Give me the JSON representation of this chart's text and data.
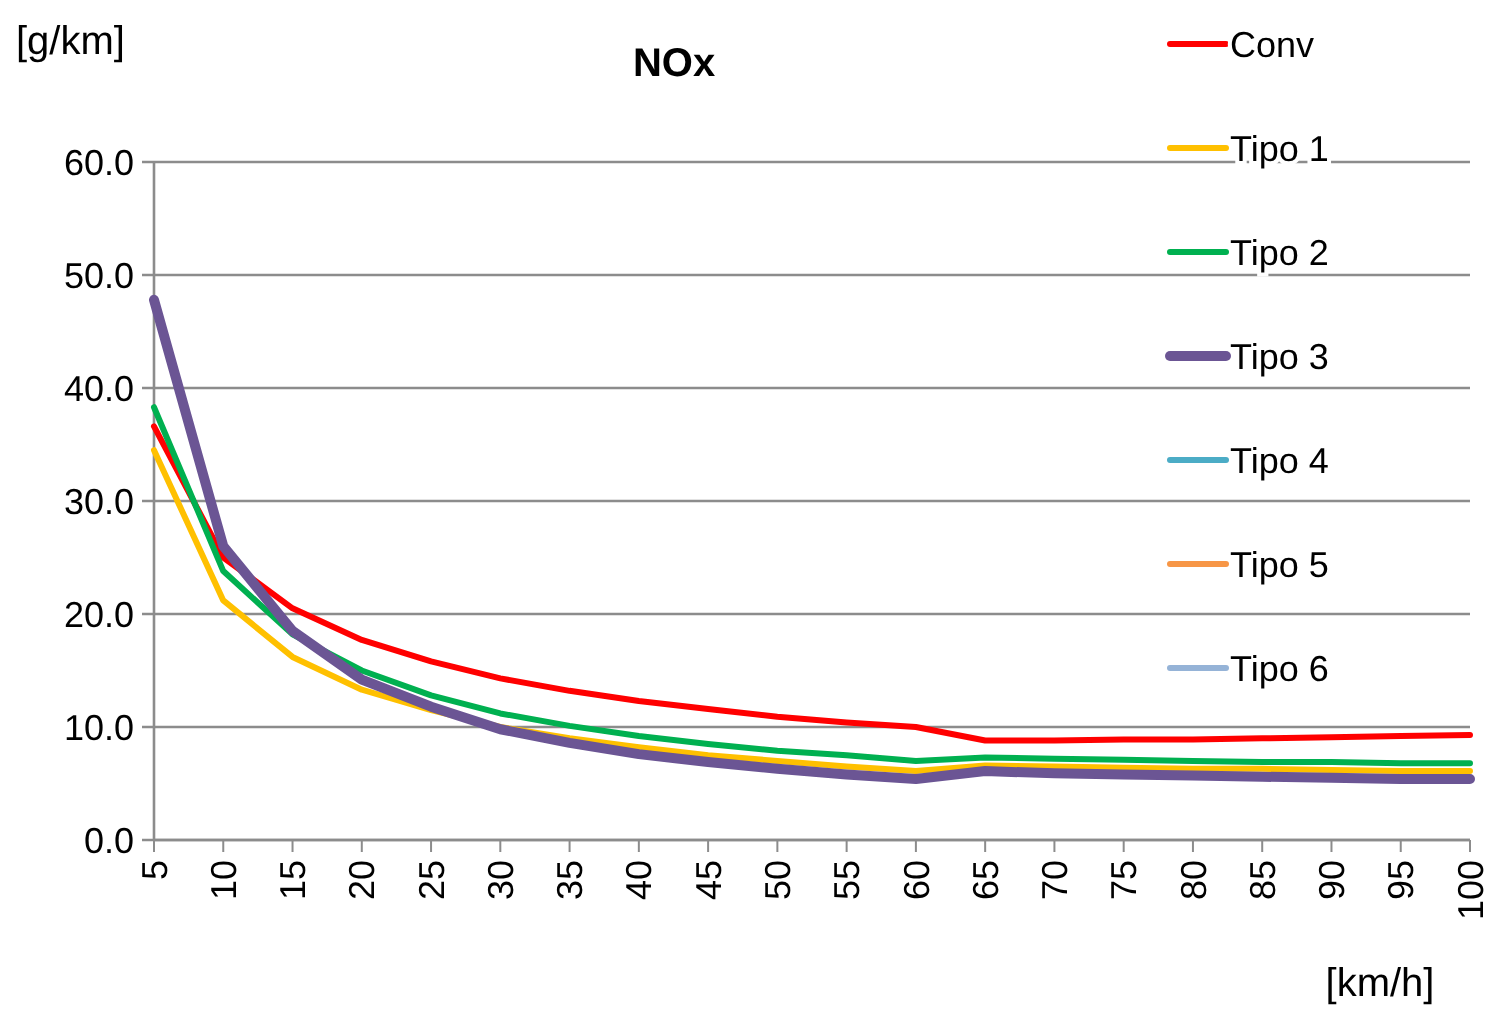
{
  "chart_data": {
    "type": "line",
    "title": "NOx",
    "xlabel": "[km/h]",
    "ylabel": "[g/km]",
    "x": [
      5,
      10,
      15,
      20,
      25,
      30,
      35,
      40,
      45,
      50,
      55,
      60,
      65,
      70,
      75,
      80,
      85,
      90,
      95,
      100
    ],
    "xlim": [
      5,
      100
    ],
    "xticks": [
      5,
      10,
      15,
      20,
      25,
      30,
      35,
      40,
      45,
      50,
      55,
      60,
      65,
      70,
      75,
      80,
      85,
      90,
      95,
      100
    ],
    "ylim": [
      0,
      60
    ],
    "yticks": [
      {
        "value": 0,
        "label": "0.0"
      },
      {
        "value": 10,
        "label": "10.0"
      },
      {
        "value": 20,
        "label": "20.0"
      },
      {
        "value": 30,
        "label": "30.0"
      },
      {
        "value": 40,
        "label": "40.0"
      },
      {
        "value": 50,
        "label": "50.0"
      },
      {
        "value": 60,
        "label": "60.0"
      }
    ],
    "grid": "y",
    "legend": "top right",
    "marker": "none",
    "line_style": "solid",
    "series": [
      {
        "name": "Conv",
        "color": "#ff0000",
        "values": [
          36.6,
          25,
          20.5,
          17.7,
          15.8,
          14.3,
          13.2,
          12.3,
          11.6,
          10.9,
          10.4,
          10.0,
          8.8,
          8.8,
          8.9,
          8.9,
          9.0,
          9.1,
          9.2,
          9.3
        ]
      },
      {
        "name": "Tipo 1",
        "color": "#ffc000",
        "values": [
          34.5,
          21.2,
          16.2,
          13.3,
          11.5,
          10.0,
          9.0,
          8.2,
          7.5,
          7.0,
          6.5,
          6.1,
          6.6,
          6.5,
          6.4,
          6.3,
          6.3,
          6.2,
          6.1,
          6.1
        ]
      },
      {
        "name": "Tipo 2",
        "color": "#00b050",
        "values": [
          38.3,
          23.8,
          18.2,
          15.0,
          12.8,
          11.2,
          10.1,
          9.2,
          8.5,
          7.9,
          7.5,
          7.0,
          7.3,
          7.2,
          7.1,
          7.0,
          6.9,
          6.9,
          6.8,
          6.8
        ]
      },
      {
        "name": "Tipo 3",
        "color": "#6b5594",
        "values": [
          47.8,
          26.0,
          18.5,
          14.2,
          11.8,
          9.8,
          8.6,
          7.6,
          6.9,
          6.3,
          5.8,
          5.4,
          6.1,
          5.9,
          5.8,
          5.7,
          5.6,
          5.5,
          5.4,
          5.4
        ]
      },
      {
        "name": "Tipo 4",
        "color": "#4bacc6",
        "values": [
          null,
          null,
          null,
          null,
          null,
          null,
          null,
          null,
          null,
          null,
          null,
          null,
          null,
          null,
          null,
          null,
          null,
          null,
          null,
          null
        ]
      },
      {
        "name": "Tipo 5",
        "color": "#f79646",
        "values": [
          null,
          null,
          null,
          null,
          null,
          null,
          null,
          null,
          null,
          null,
          null,
          null,
          null,
          null,
          null,
          null,
          null,
          null,
          null,
          null
        ]
      },
      {
        "name": "Tipo 6",
        "color": "#95b3d7",
        "values": [
          null,
          null,
          null,
          null,
          null,
          null,
          null,
          null,
          null,
          null,
          null,
          null,
          null,
          null,
          null,
          null,
          null,
          null,
          null,
          null
        ]
      }
    ]
  }
}
